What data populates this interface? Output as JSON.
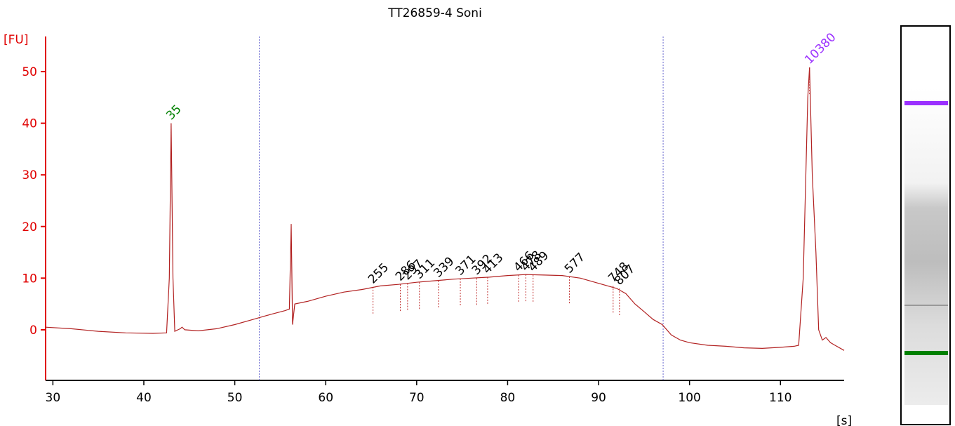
{
  "chart_data": {
    "type": "line",
    "title": "TT26859-4 Soni",
    "xlabel": "[s]",
    "ylabel": "[FU]",
    "xlim": [
      29.2,
      117
    ],
    "ylim": [
      -9.8,
      56.8
    ],
    "xticks": [
      30,
      40,
      50,
      60,
      70,
      80,
      90,
      100,
      110
    ],
    "yticks": [
      0,
      10,
      20,
      30,
      40,
      50
    ],
    "y_axis_color": "#e00000",
    "x": [
      29.2,
      32,
      35,
      38,
      41,
      42.5,
      42.8,
      43.0,
      43.2,
      43.4,
      44,
      44.2,
      44.5,
      46,
      48,
      50,
      52,
      54,
      55.5,
      56,
      56.2,
      56.35,
      56.6,
      58,
      60,
      62,
      64,
      66,
      68,
      70,
      72,
      74,
      76,
      78,
      80,
      82,
      84,
      86,
      88,
      90,
      92,
      93,
      94,
      95,
      96,
      97,
      98,
      99,
      100,
      102,
      104,
      106,
      108,
      110,
      111.5,
      112,
      112.5,
      113,
      113.2,
      113.5,
      113.9,
      114.2,
      114.6,
      115,
      115.5,
      116,
      117
    ],
    "series": [
      {
        "name": "signal",
        "color": "#b22222",
        "values": [
          0.5,
          0.2,
          -0.3,
          -0.6,
          -0.7,
          -0.6,
          10,
          40,
          10,
          -0.3,
          0.2,
          0.5,
          0,
          -0.2,
          0.2,
          1,
          2,
          3,
          3.7,
          4,
          20.5,
          1,
          5,
          5.5,
          6.5,
          7.3,
          7.8,
          8.5,
          8.8,
          9.2,
          9.5,
          9.8,
          10,
          10.2,
          10.5,
          10.7,
          10.6,
          10.5,
          10,
          9,
          8,
          7,
          5,
          3.5,
          2,
          1,
          -1,
          -2,
          -2.5,
          -3,
          -3.2,
          -3.5,
          -3.6,
          -3.4,
          -3.2,
          -3,
          10,
          45,
          50.8,
          30,
          15,
          0,
          -2,
          -1.5,
          -2.5,
          -3,
          -4
        ]
      }
    ],
    "region_bounds": [
      52.7,
      97.1
    ],
    "peaks": [
      {
        "size": 35,
        "x": 43.0,
        "height": 40,
        "color": "#008000"
      },
      {
        "size": 255,
        "x": 65.2,
        "height": 8.3,
        "color": "#000000"
      },
      {
        "size": 286,
        "x": 68.2,
        "height": 8.8,
        "color": "#000000"
      },
      {
        "size": 297,
        "x": 69.0,
        "height": 9.0,
        "color": "#000000"
      },
      {
        "size": 311,
        "x": 70.3,
        "height": 9.2,
        "color": "#000000"
      },
      {
        "size": 339,
        "x": 72.4,
        "height": 9.5,
        "color": "#000000"
      },
      {
        "size": 371,
        "x": 74.8,
        "height": 9.9,
        "color": "#000000"
      },
      {
        "size": 392,
        "x": 76.6,
        "height": 10.0,
        "color": "#000000"
      },
      {
        "size": 413,
        "x": 77.8,
        "height": 10.2,
        "color": "#000000"
      },
      {
        "size": 466,
        "x": 81.2,
        "height": 10.6,
        "color": "#000000"
      },
      {
        "size": 478,
        "x": 82.0,
        "height": 10.7,
        "color": "#000000"
      },
      {
        "size": 489,
        "x": 82.8,
        "height": 10.6,
        "color": "#000000"
      },
      {
        "size": 577,
        "x": 86.8,
        "height": 10.3,
        "color": "#000000"
      },
      {
        "size": 748,
        "x": 91.6,
        "height": 8.5,
        "color": "#000000"
      },
      {
        "size": 807,
        "x": 92.3,
        "height": 8.0,
        "color": "#000000"
      },
      {
        "size": 10380,
        "x": 113.2,
        "height": 50.8,
        "color": "#9b30ff"
      }
    ]
  }
}
